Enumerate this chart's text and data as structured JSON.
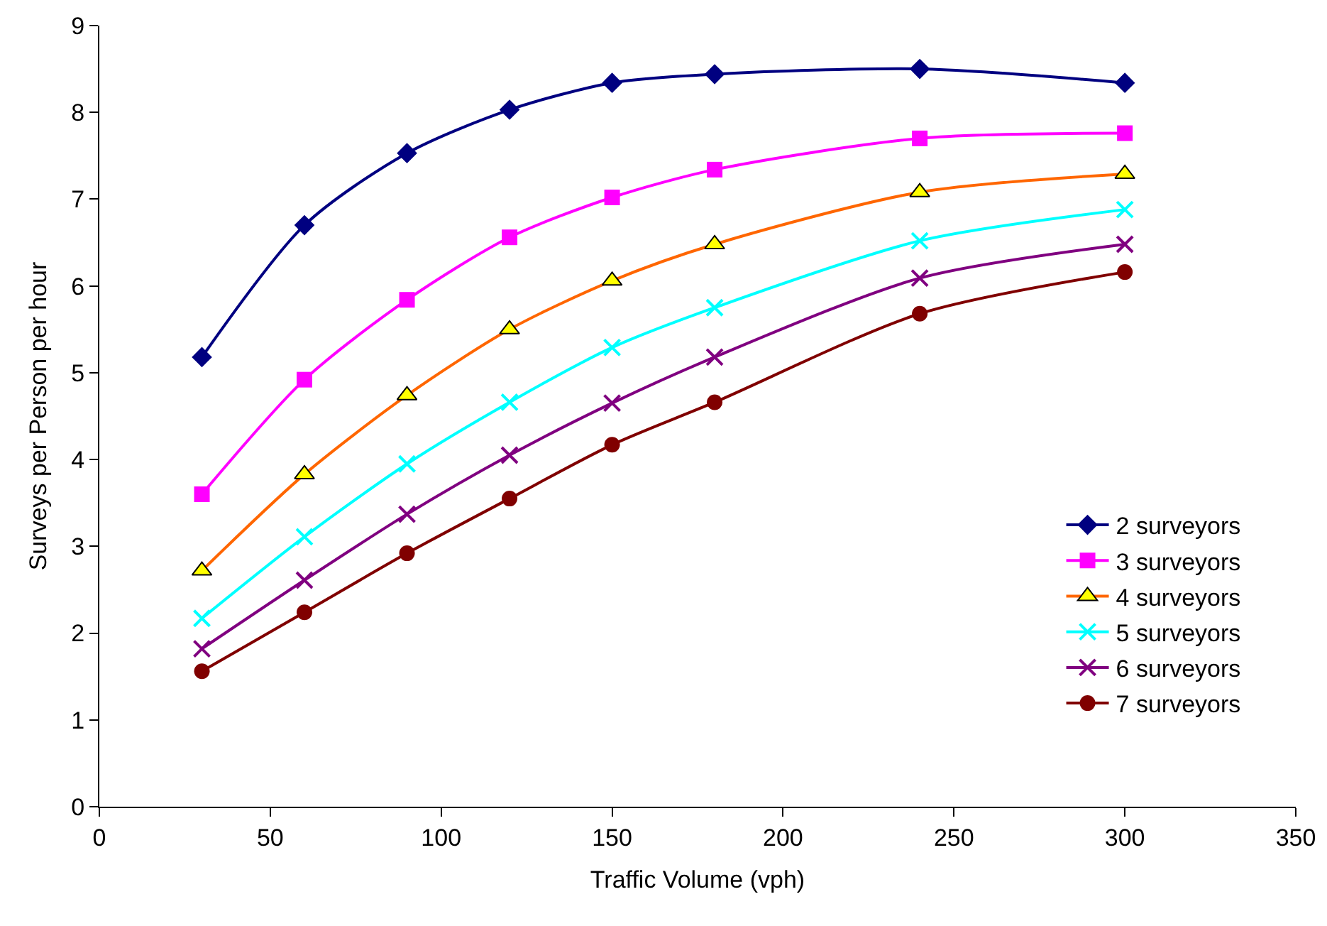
{
  "chart_data": {
    "type": "line",
    "xlabel": "Traffic Volume (vph)",
    "ylabel": "Surveys per Person per hour",
    "x": [
      30,
      60,
      90,
      120,
      150,
      180,
      240,
      300
    ],
    "xlim": [
      0,
      350
    ],
    "xticks": [
      0,
      50,
      100,
      150,
      200,
      250,
      300,
      350
    ],
    "ylim": [
      0,
      9
    ],
    "yticks": [
      0,
      1,
      2,
      3,
      4,
      5,
      6,
      7,
      8,
      9
    ],
    "grid": false,
    "legend": "bottom right",
    "line_style": "solid",
    "series": [
      {
        "name": "2 surveyors",
        "color": "#000080",
        "marker": "diamond",
        "values": [
          5.18,
          6.7,
          7.53,
          8.03,
          8.34,
          8.44,
          8.5,
          8.34
        ]
      },
      {
        "name": "3 surveyors",
        "color": "#ff00ff",
        "marker": "square",
        "values": [
          3.6,
          4.92,
          5.84,
          6.56,
          7.02,
          7.34,
          7.7,
          7.76
        ]
      },
      {
        "name": "4 surveyors",
        "color": "#ff6600",
        "marker": "triangle",
        "values": [
          2.72,
          3.83,
          4.74,
          5.5,
          6.06,
          6.48,
          7.08,
          7.29
        ]
      },
      {
        "name": "5 surveyors",
        "color": "#00ffff",
        "marker": "cross",
        "values": [
          2.17,
          3.11,
          3.95,
          4.66,
          5.29,
          5.75,
          6.52,
          6.88
        ]
      },
      {
        "name": "6 surveyors",
        "color": "#800080",
        "marker": "cross",
        "values": [
          1.82,
          2.61,
          3.37,
          4.05,
          4.65,
          5.18,
          6.09,
          6.48
        ]
      },
      {
        "name": "7 surveyors",
        "color": "#800000",
        "marker": "circle",
        "values": [
          1.56,
          2.24,
          2.92,
          3.55,
          4.17,
          4.66,
          5.68,
          6.16
        ]
      }
    ]
  }
}
